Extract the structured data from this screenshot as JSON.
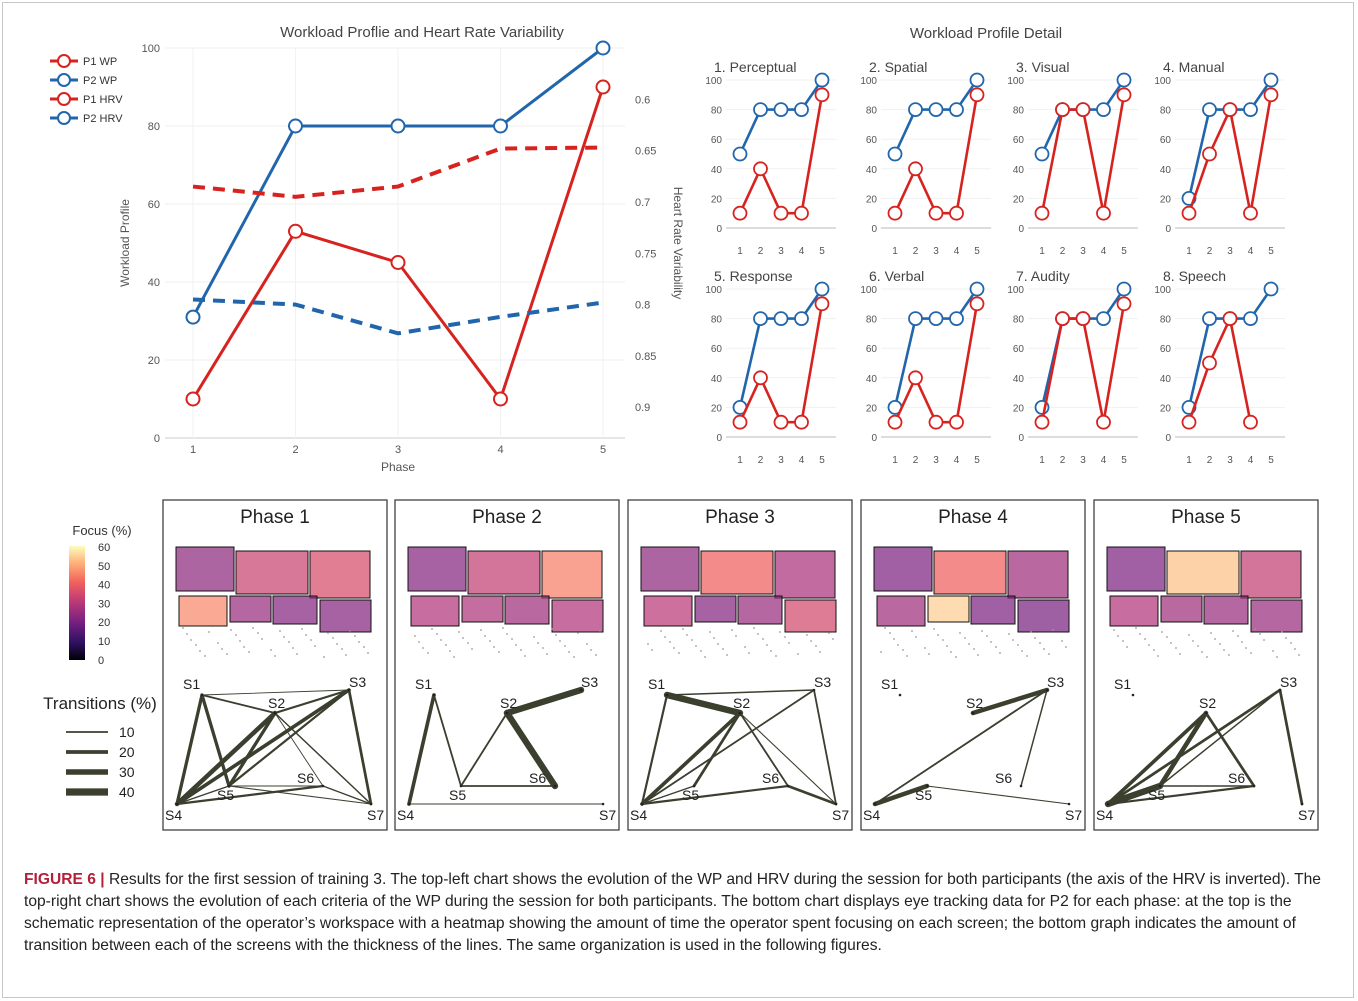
{
  "figure": {
    "caption_label": "FIGURE 6 |",
    "caption_text": " Results for the first session of training 3. The top-left chart shows the evolution of the WP and HRV during the session for both participants (the axis of the HRV is inverted). The top-right chart shows the evolution of each criteria of the WP during the session for both participants. The bottom chart displays eye tracking data for P2 for each phase: at the top is the schematic representation of the operator’s workspace with a heatmap showing the amount of time the operator spent focusing on each screen; the bottom graph indicates the amount of transition between each of the screens with the thickness of the lines. The same organization is used in the following figures."
  },
  "colors": {
    "p1": "#d7231f",
    "p2": "#2166ac",
    "node_edge": "#3a3f2e",
    "axis_text": "#555555"
  },
  "chart_data": [
    {
      "type": "line",
      "title": "Workload Proflie and Heart Rate Variability",
      "xlabel": "Phase",
      "ylabel": "Workload Profile",
      "y2label": "Heart Rate Variability",
      "x": [
        1,
        2,
        3,
        4,
        5
      ],
      "xticks": [
        "1",
        "2",
        "3",
        "4",
        "5"
      ],
      "ylim": [
        0,
        100
      ],
      "yticks": [
        "0",
        "20",
        "40",
        "60",
        "80",
        "100"
      ],
      "y2lim": [
        0.55,
        0.93
      ],
      "y2_inverted": true,
      "y2ticks": [
        "0.6",
        "0.65",
        "0.7",
        "0.75",
        "0.8",
        "0.85",
        "0.9"
      ],
      "legend_position": "top-left",
      "series": [
        {
          "name": "P1 WP",
          "axis": "left",
          "dash": false,
          "color": "#d7231f",
          "values": [
            10,
            53,
            45,
            10,
            90
          ]
        },
        {
          "name": "P2 WP",
          "axis": "left",
          "dash": false,
          "color": "#2166ac",
          "values": [
            31,
            80,
            80,
            80,
            100
          ]
        },
        {
          "name": "P1 HRV",
          "axis": "right",
          "dash": true,
          "color": "#d7231f",
          "values": [
            0.685,
            0.695,
            0.685,
            0.648,
            0.647
          ]
        },
        {
          "name": "P2 HRV",
          "axis": "right",
          "dash": true,
          "color": "#2166ac",
          "values": [
            0.795,
            0.8,
            0.828,
            0.812,
            0.798
          ]
        }
      ]
    },
    {
      "type": "line",
      "title": "Workload Profile Detail",
      "x": [
        1,
        2,
        3,
        4,
        5
      ],
      "xticks": [
        "1",
        "2",
        "3",
        "4",
        "5"
      ],
      "ylim": [
        0,
        100
      ],
      "yticks": [
        "0",
        "20",
        "40",
        "60",
        "80",
        "100"
      ],
      "panels": [
        {
          "title": "1. Perceptual",
          "p1": [
            10,
            40,
            10,
            10,
            90
          ],
          "p2": [
            50,
            80,
            80,
            80,
            100
          ]
        },
        {
          "title": "2. Spatial",
          "p1": [
            10,
            40,
            10,
            10,
            90
          ],
          "p2": [
            50,
            80,
            80,
            80,
            100
          ]
        },
        {
          "title": "3. Visual",
          "p1": [
            10,
            80,
            80,
            10,
            90
          ],
          "p2": [
            50,
            80,
            80,
            80,
            100
          ]
        },
        {
          "title": "4. Manual",
          "p1": [
            10,
            50,
            80,
            10,
            90
          ],
          "p2": [
            20,
            80,
            80,
            80,
            100
          ]
        },
        {
          "title": "5. Response",
          "p1": [
            10,
            40,
            10,
            10,
            90
          ],
          "p2": [
            20,
            80,
            80,
            80,
            100
          ]
        },
        {
          "title": "6. Verbal",
          "p1": [
            10,
            40,
            10,
            10,
            90
          ],
          "p2": [
            20,
            80,
            80,
            80,
            100
          ]
        },
        {
          "title": "7. Audity",
          "p1": [
            10,
            80,
            80,
            10,
            90
          ],
          "p2": [
            20,
            80,
            80,
            80,
            100
          ]
        },
        {
          "title": "8. Speech",
          "p1": [
            10,
            50,
            80,
            10,
            null
          ],
          "p2": [
            20,
            80,
            80,
            80,
            100
          ]
        }
      ]
    },
    {
      "type": "heatmap",
      "colorbar_title": "Focus (%)",
      "colorbar_ticks": [
        "60",
        "50",
        "40",
        "30",
        "20",
        "10",
        "0"
      ],
      "range": [
        0,
        60
      ],
      "phases": [
        {
          "title": "Phase 1",
          "focus": [
            8,
            22,
            25,
            40,
            10,
            6,
            6
          ]
        },
        {
          "title": "Phase 2",
          "focus": [
            6,
            20,
            38,
            16,
            15,
            12,
            16
          ]
        },
        {
          "title": "Phase 3",
          "focus": [
            8,
            32,
            14,
            18,
            6,
            10,
            24
          ]
        },
        {
          "title": "Phase 4",
          "focus": [
            4,
            32,
            12,
            12,
            52,
            4,
            3
          ]
        },
        {
          "title": "Phase 5",
          "focus": [
            4,
            50,
            20,
            16,
            12,
            10,
            10
          ]
        }
      ]
    },
    {
      "type": "network",
      "legend_title": "Transitions (%)",
      "legend_values": [
        10,
        20,
        30,
        40
      ],
      "legend_labels": [
        "10",
        "20",
        "30",
        "40"
      ],
      "nodes": [
        "S1",
        "S2",
        "S3",
        "S4",
        "S5",
        "S6",
        "S7"
      ],
      "phases": [
        {
          "edges": [
            [
              "S1",
              "S2",
              10
            ],
            [
              "S1",
              "S3",
              5
            ],
            [
              "S1",
              "S4",
              18
            ],
            [
              "S1",
              "S5",
              18
            ],
            [
              "S2",
              "S3",
              12
            ],
            [
              "S2",
              "S4",
              25
            ],
            [
              "S2",
              "S5",
              18
            ],
            [
              "S2",
              "S7",
              8
            ],
            [
              "S3",
              "S4",
              20
            ],
            [
              "S3",
              "S5",
              12
            ],
            [
              "S3",
              "S7",
              15
            ],
            [
              "S4",
              "S5",
              8
            ],
            [
              "S4",
              "S6",
              12
            ],
            [
              "S5",
              "S6",
              6
            ],
            [
              "S6",
              "S7",
              8
            ],
            [
              "S5",
              "S7",
              6
            ],
            [
              "S2",
              "S6",
              5
            ]
          ]
        },
        {
          "edges": [
            [
              "S1",
              "S4",
              20
            ],
            [
              "S1",
              "S5",
              10
            ],
            [
              "S2",
              "S3",
              35
            ],
            [
              "S2",
              "S5",
              10
            ],
            [
              "S2",
              "S6",
              35
            ],
            [
              "S4",
              "S7",
              5
            ],
            [
              "S5",
              "S6",
              10
            ]
          ]
        },
        {
          "edges": [
            [
              "S1",
              "S2",
              35
            ],
            [
              "S1",
              "S3",
              8
            ],
            [
              "S1",
              "S4",
              12
            ],
            [
              "S2",
              "S4",
              20
            ],
            [
              "S2",
              "S5",
              15
            ],
            [
              "S2",
              "S6",
              10
            ],
            [
              "S3",
              "S4",
              10
            ],
            [
              "S3",
              "S7",
              10
            ],
            [
              "S4",
              "S6",
              12
            ],
            [
              "S4",
              "S5",
              8
            ],
            [
              "S6",
              "S7",
              15
            ],
            [
              "S2",
              "S7",
              6
            ]
          ]
        },
        {
          "edges": [
            [
              "S2",
              "S3",
              25
            ],
            [
              "S3",
              "S4",
              10
            ],
            [
              "S3",
              "S6",
              8
            ],
            [
              "S4",
              "S5",
              25
            ],
            [
              "S5",
              "S7",
              6
            ]
          ]
        },
        {
          "edges": [
            [
              "S2",
              "S4",
              20
            ],
            [
              "S2",
              "S5",
              25
            ],
            [
              "S2",
              "S6",
              15
            ],
            [
              "S3",
              "S4",
              15
            ],
            [
              "S3",
              "S5",
              8
            ],
            [
              "S3",
              "S7",
              15
            ],
            [
              "S4",
              "S5",
              35
            ],
            [
              "S4",
              "S6",
              12
            ],
            [
              "S5",
              "S6",
              8
            ]
          ]
        }
      ]
    }
  ]
}
